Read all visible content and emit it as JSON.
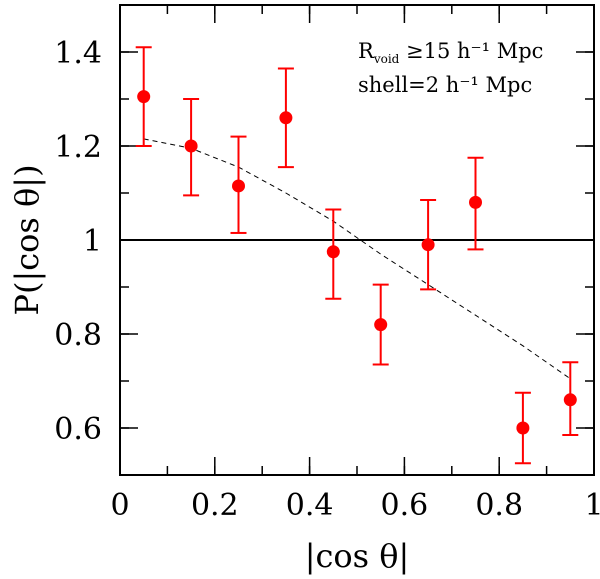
{
  "chart_data": {
    "type": "scatter",
    "xlabel": "|cos θ|",
    "ylabel": "P(|cos θ|)",
    "xlim": [
      0,
      1
    ],
    "ylim": [
      0.5,
      1.5
    ],
    "x_ticks": [
      {
        "value": 0,
        "label": "0"
      },
      {
        "value": 0.2,
        "label": "0.2"
      },
      {
        "value": 0.4,
        "label": "0.4"
      },
      {
        "value": 0.6,
        "label": "0.6"
      },
      {
        "value": 0.8,
        "label": "0.8"
      },
      {
        "value": 1,
        "label": "1"
      }
    ],
    "y_ticks": [
      {
        "value": 0.6,
        "label": "0.6"
      },
      {
        "value": 0.8,
        "label": "0.8"
      },
      {
        "value": 1.0,
        "label": "1"
      },
      {
        "value": 1.2,
        "label": "1.2"
      },
      {
        "value": 1.4,
        "label": "1.4"
      }
    ],
    "x_minor_step": 0.1,
    "y_minor_step": 0.1,
    "points": [
      {
        "x": 0.05,
        "y": 1.305,
        "err_low": 1.2,
        "err_high": 1.41
      },
      {
        "x": 0.15,
        "y": 1.2,
        "err_low": 1.095,
        "err_high": 1.3
      },
      {
        "x": 0.25,
        "y": 1.115,
        "err_low": 1.015,
        "err_high": 1.22
      },
      {
        "x": 0.35,
        "y": 1.26,
        "err_low": 1.155,
        "err_high": 1.365
      },
      {
        "x": 0.45,
        "y": 0.975,
        "err_low": 0.875,
        "err_high": 1.065
      },
      {
        "x": 0.55,
        "y": 0.82,
        "err_low": 0.735,
        "err_high": 0.905
      },
      {
        "x": 0.65,
        "y": 0.99,
        "err_low": 0.895,
        "err_high": 1.085
      },
      {
        "x": 0.75,
        "y": 1.08,
        "err_low": 0.98,
        "err_high": 1.175
      },
      {
        "x": 0.85,
        "y": 0.6,
        "err_low": 0.525,
        "err_high": 0.675
      },
      {
        "x": 0.95,
        "y": 0.66,
        "err_low": 0.585,
        "err_high": 0.74
      }
    ],
    "reference_line": {
      "y": 1.0,
      "style": "solid"
    },
    "fit_curve": {
      "style": "dashed",
      "x": [
        0.05,
        0.15,
        0.25,
        0.35,
        0.45,
        0.55,
        0.65,
        0.75,
        0.85,
        0.95
      ],
      "y": [
        1.215,
        1.195,
        1.155,
        1.1,
        1.04,
        0.97,
        0.905,
        0.84,
        0.775,
        0.705
      ]
    },
    "annotations": {
      "line1_r": "R",
      "line1_sub": "void",
      "line1_rest": " ≥15 h⁻¹ Mpc",
      "line2": "shell=2 h⁻¹ Mpc"
    },
    "colors": {
      "points": "#ff0000",
      "axes": "#000000",
      "fit": "#000000"
    }
  }
}
